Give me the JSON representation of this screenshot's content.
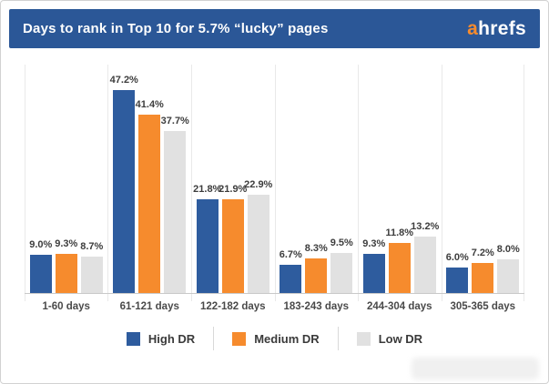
{
  "header": {
    "title": "Days to rank in Top 10 for 5.7% “lucky” pages",
    "logo_prefix": "a",
    "logo_rest": "hrefs"
  },
  "colors": {
    "header_background": "#2b5797",
    "logo_accent": "#f68b2d",
    "high_dr": "#2e5c9e",
    "medium_dr": "#f68b2d",
    "low_dr": "#e1e1e1",
    "gridline": "#e9e9e9",
    "baseline": "#c9c9c9",
    "value_label_text": "#3d3d3d",
    "category_label_text": "#4a4a4a"
  },
  "chart_data": {
    "type": "bar",
    "title": "Days to rank in Top 10 for 5.7% “lucky” pages",
    "categories": [
      "1-60 days",
      "61-121 days",
      "122-182 days",
      "183-243 days",
      "244-304 days",
      "305-365 days"
    ],
    "series": [
      {
        "name": "High DR",
        "color": "#2e5c9e",
        "values": [
          9.0,
          47.2,
          21.8,
          6.7,
          9.3,
          6.0
        ]
      },
      {
        "name": "Medium DR",
        "color": "#f68b2d",
        "values": [
          9.3,
          41.4,
          21.9,
          8.3,
          11.8,
          7.2
        ]
      },
      {
        "name": "Low DR",
        "color": "#e1e1e1",
        "values": [
          8.7,
          37.7,
          22.9,
          9.5,
          13.2,
          8.0
        ]
      }
    ],
    "value_suffix": "%",
    "value_decimals": 1,
    "xlabel": "",
    "ylabel": "",
    "ylim": [
      0,
      53
    ],
    "grid": "vertical-category-separators",
    "y_axis_visible": false,
    "data_labels": true,
    "legend_position": "bottom"
  }
}
